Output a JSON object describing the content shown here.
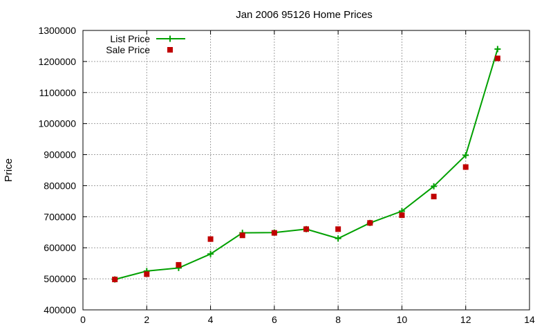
{
  "chart_data": {
    "type": "line",
    "title": "Jan 2006 95126 Home Prices",
    "xlabel": "",
    "ylabel": "Price",
    "xlim": [
      0,
      14
    ],
    "ylim": [
      400000,
      1300000
    ],
    "xticks": [
      0,
      2,
      4,
      6,
      8,
      10,
      12,
      14
    ],
    "yticks": [
      400000,
      500000,
      600000,
      700000,
      800000,
      900000,
      1000000,
      1100000,
      1200000,
      1300000
    ],
    "xtick_labels": [
      "0",
      "2",
      "4",
      "6",
      "8",
      "10",
      "12",
      "14"
    ],
    "ytick_labels": [
      "400000",
      "500000",
      "600000",
      "700000",
      "800000",
      "900000",
      "1000000",
      "1100000",
      "1200000",
      "1300000"
    ],
    "grid": true,
    "legend_position": "top-left",
    "series": [
      {
        "name": "List Price",
        "style": "line-with-plus-markers",
        "color": "#00a000",
        "points": [
          {
            "x": 1,
            "y": 498000
          },
          {
            "x": 2,
            "y": 525000
          },
          {
            "x": 3,
            "y": 535000
          },
          {
            "x": 4,
            "y": 580000
          },
          {
            "x": 5,
            "y": 648000
          },
          {
            "x": 6,
            "y": 649000
          },
          {
            "x": 7,
            "y": 660000
          },
          {
            "x": 8,
            "y": 630000
          },
          {
            "x": 9,
            "y": 680000
          },
          {
            "x": 10,
            "y": 718000
          },
          {
            "x": 11,
            "y": 798000
          },
          {
            "x": 12,
            "y": 898000
          },
          {
            "x": 13,
            "y": 1240000
          }
        ]
      },
      {
        "name": "Sale Price",
        "style": "square-markers",
        "color": "#c00000",
        "points": [
          {
            "x": 1,
            "y": 498000
          },
          {
            "x": 2,
            "y": 515000
          },
          {
            "x": 3,
            "y": 545000
          },
          {
            "x": 4,
            "y": 628000
          },
          {
            "x": 5,
            "y": 640000
          },
          {
            "x": 6,
            "y": 648000
          },
          {
            "x": 7,
            "y": 660000
          },
          {
            "x": 8,
            "y": 660000
          },
          {
            "x": 9,
            "y": 680000
          },
          {
            "x": 10,
            "y": 705000
          },
          {
            "x": 11,
            "y": 765000
          },
          {
            "x": 12,
            "y": 860000
          },
          {
            "x": 13,
            "y": 1210000
          }
        ]
      }
    ]
  }
}
